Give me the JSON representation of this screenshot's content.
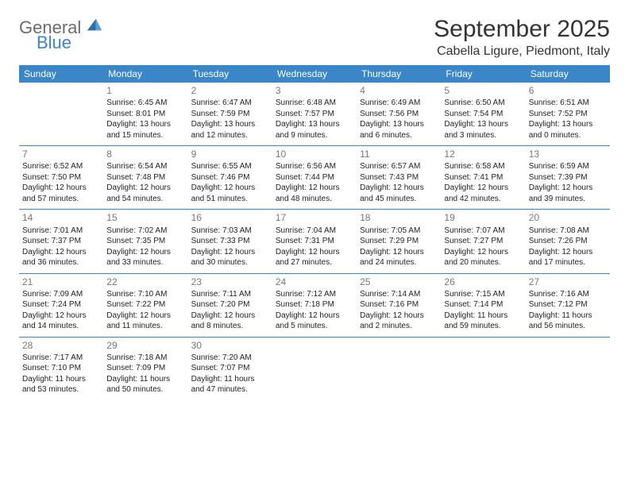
{
  "logo": {
    "word1": "General",
    "word2": "Blue"
  },
  "colors": {
    "accent": "#3a86c8",
    "text": "#333333",
    "muted": "#777777",
    "bg": "#ffffff"
  },
  "title": "September 2025",
  "subtitle": "Cabella Ligure, Piedmont, Italy",
  "layout": {
    "type": "calendar",
    "columns": 7,
    "rows": 5,
    "cell_fontsize": 10,
    "header_fontsize": 12,
    "title_fontsize": 30,
    "subtitle_fontsize": 16
  },
  "weekdays": [
    "Sunday",
    "Monday",
    "Tuesday",
    "Wednesday",
    "Thursday",
    "Friday",
    "Saturday"
  ],
  "weeks": [
    [
      null,
      {
        "n": "1",
        "sr": "Sunrise: 6:45 AM",
        "ss": "Sunset: 8:01 PM",
        "dl": "Daylight: 13 hours and 15 minutes."
      },
      {
        "n": "2",
        "sr": "Sunrise: 6:47 AM",
        "ss": "Sunset: 7:59 PM",
        "dl": "Daylight: 13 hours and 12 minutes."
      },
      {
        "n": "3",
        "sr": "Sunrise: 6:48 AM",
        "ss": "Sunset: 7:57 PM",
        "dl": "Daylight: 13 hours and 9 minutes."
      },
      {
        "n": "4",
        "sr": "Sunrise: 6:49 AM",
        "ss": "Sunset: 7:56 PM",
        "dl": "Daylight: 13 hours and 6 minutes."
      },
      {
        "n": "5",
        "sr": "Sunrise: 6:50 AM",
        "ss": "Sunset: 7:54 PM",
        "dl": "Daylight: 13 hours and 3 minutes."
      },
      {
        "n": "6",
        "sr": "Sunrise: 6:51 AM",
        "ss": "Sunset: 7:52 PM",
        "dl": "Daylight: 13 hours and 0 minutes."
      }
    ],
    [
      {
        "n": "7",
        "sr": "Sunrise: 6:52 AM",
        "ss": "Sunset: 7:50 PM",
        "dl": "Daylight: 12 hours and 57 minutes."
      },
      {
        "n": "8",
        "sr": "Sunrise: 6:54 AM",
        "ss": "Sunset: 7:48 PM",
        "dl": "Daylight: 12 hours and 54 minutes."
      },
      {
        "n": "9",
        "sr": "Sunrise: 6:55 AM",
        "ss": "Sunset: 7:46 PM",
        "dl": "Daylight: 12 hours and 51 minutes."
      },
      {
        "n": "10",
        "sr": "Sunrise: 6:56 AM",
        "ss": "Sunset: 7:44 PM",
        "dl": "Daylight: 12 hours and 48 minutes."
      },
      {
        "n": "11",
        "sr": "Sunrise: 6:57 AM",
        "ss": "Sunset: 7:43 PM",
        "dl": "Daylight: 12 hours and 45 minutes."
      },
      {
        "n": "12",
        "sr": "Sunrise: 6:58 AM",
        "ss": "Sunset: 7:41 PM",
        "dl": "Daylight: 12 hours and 42 minutes."
      },
      {
        "n": "13",
        "sr": "Sunrise: 6:59 AM",
        "ss": "Sunset: 7:39 PM",
        "dl": "Daylight: 12 hours and 39 minutes."
      }
    ],
    [
      {
        "n": "14",
        "sr": "Sunrise: 7:01 AM",
        "ss": "Sunset: 7:37 PM",
        "dl": "Daylight: 12 hours and 36 minutes."
      },
      {
        "n": "15",
        "sr": "Sunrise: 7:02 AM",
        "ss": "Sunset: 7:35 PM",
        "dl": "Daylight: 12 hours and 33 minutes."
      },
      {
        "n": "16",
        "sr": "Sunrise: 7:03 AM",
        "ss": "Sunset: 7:33 PM",
        "dl": "Daylight: 12 hours and 30 minutes."
      },
      {
        "n": "17",
        "sr": "Sunrise: 7:04 AM",
        "ss": "Sunset: 7:31 PM",
        "dl": "Daylight: 12 hours and 27 minutes."
      },
      {
        "n": "18",
        "sr": "Sunrise: 7:05 AM",
        "ss": "Sunset: 7:29 PM",
        "dl": "Daylight: 12 hours and 24 minutes."
      },
      {
        "n": "19",
        "sr": "Sunrise: 7:07 AM",
        "ss": "Sunset: 7:27 PM",
        "dl": "Daylight: 12 hours and 20 minutes."
      },
      {
        "n": "20",
        "sr": "Sunrise: 7:08 AM",
        "ss": "Sunset: 7:26 PM",
        "dl": "Daylight: 12 hours and 17 minutes."
      }
    ],
    [
      {
        "n": "21",
        "sr": "Sunrise: 7:09 AM",
        "ss": "Sunset: 7:24 PM",
        "dl": "Daylight: 12 hours and 14 minutes."
      },
      {
        "n": "22",
        "sr": "Sunrise: 7:10 AM",
        "ss": "Sunset: 7:22 PM",
        "dl": "Daylight: 12 hours and 11 minutes."
      },
      {
        "n": "23",
        "sr": "Sunrise: 7:11 AM",
        "ss": "Sunset: 7:20 PM",
        "dl": "Daylight: 12 hours and 8 minutes."
      },
      {
        "n": "24",
        "sr": "Sunrise: 7:12 AM",
        "ss": "Sunset: 7:18 PM",
        "dl": "Daylight: 12 hours and 5 minutes."
      },
      {
        "n": "25",
        "sr": "Sunrise: 7:14 AM",
        "ss": "Sunset: 7:16 PM",
        "dl": "Daylight: 12 hours and 2 minutes."
      },
      {
        "n": "26",
        "sr": "Sunrise: 7:15 AM",
        "ss": "Sunset: 7:14 PM",
        "dl": "Daylight: 11 hours and 59 minutes."
      },
      {
        "n": "27",
        "sr": "Sunrise: 7:16 AM",
        "ss": "Sunset: 7:12 PM",
        "dl": "Daylight: 11 hours and 56 minutes."
      }
    ],
    [
      {
        "n": "28",
        "sr": "Sunrise: 7:17 AM",
        "ss": "Sunset: 7:10 PM",
        "dl": "Daylight: 11 hours and 53 minutes."
      },
      {
        "n": "29",
        "sr": "Sunrise: 7:18 AM",
        "ss": "Sunset: 7:09 PM",
        "dl": "Daylight: 11 hours and 50 minutes."
      },
      {
        "n": "30",
        "sr": "Sunrise: 7:20 AM",
        "ss": "Sunset: 7:07 PM",
        "dl": "Daylight: 11 hours and 47 minutes."
      },
      null,
      null,
      null,
      null
    ]
  ]
}
